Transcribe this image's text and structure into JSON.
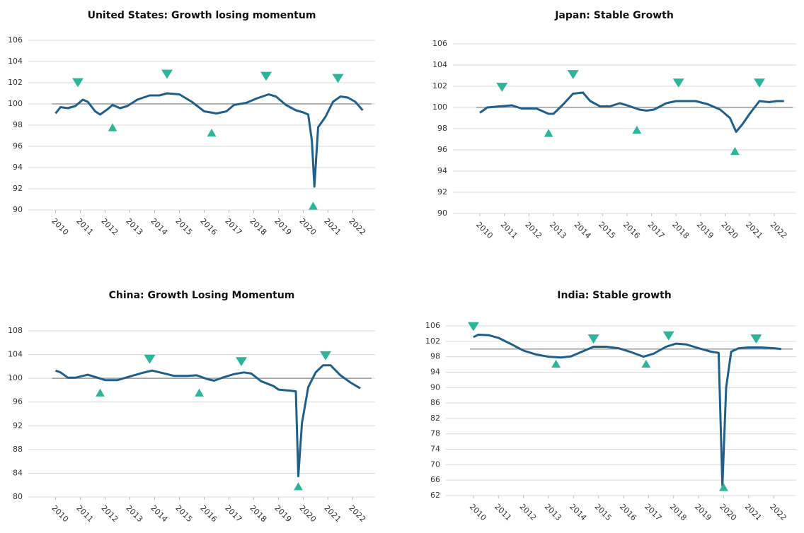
{
  "chart_data": [
    {
      "type": "line",
      "title": "United States: Growth losing momentum",
      "xlim": [
        2008.9,
        2022.9
      ],
      "xticks": [
        2010,
        2011,
        2012,
        2013,
        2014,
        2015,
        2016,
        2017,
        2018,
        2019,
        2020,
        2021,
        2022
      ],
      "ylim": [
        90,
        106
      ],
      "yticks": [
        90,
        92,
        94,
        96,
        98,
        100,
        102,
        104,
        106
      ],
      "grid": true,
      "reference": 100,
      "series": [
        {
          "color": "#1f5f8b",
          "x": [
            2010.0,
            2010.2,
            2010.5,
            2010.8,
            2011.1,
            2011.3,
            2011.6,
            2011.8,
            2012.1,
            2012.3,
            2012.6,
            2012.9,
            2013.3,
            2013.8,
            2014.2,
            2014.5,
            2015.0,
            2015.5,
            2016.0,
            2016.5,
            2016.9,
            2017.2,
            2017.7,
            2018.1,
            2018.6,
            2018.9,
            2019.3,
            2019.7,
            2020.0,
            2020.2,
            2020.35,
            2020.45,
            2020.6,
            2020.9,
            2021.2,
            2021.5,
            2021.8,
            2022.1,
            2022.4
          ],
          "values": [
            99.1,
            99.7,
            99.6,
            99.8,
            100.4,
            100.2,
            99.3,
            99.0,
            99.5,
            99.9,
            99.6,
            99.8,
            100.4,
            100.8,
            100.8,
            101.0,
            100.9,
            100.2,
            99.3,
            99.1,
            99.3,
            99.9,
            100.1,
            100.5,
            100.9,
            100.7,
            99.9,
            99.4,
            99.2,
            99.0,
            96.5,
            92.2,
            97.8,
            98.8,
            100.2,
            100.7,
            100.6,
            100.2,
            99.4
          ]
        }
      ],
      "marker_color": "#2bb59a",
      "peaks": {
        "x": [
          2010.9,
          2014.5,
          2018.5,
          2021.4
        ],
        "y": [
          102.0,
          102.8,
          102.6,
          102.4
        ]
      },
      "troughs": {
        "x": [
          2012.3,
          2016.3,
          2020.4
        ],
        "y": [
          97.8,
          97.3,
          90.4
        ]
      }
    },
    {
      "type": "line",
      "title": "Japan: Stable Growth",
      "xlim": [
        2008.9,
        2022.9
      ],
      "xticks": [
        2010,
        2011,
        2012,
        2013,
        2014,
        2015,
        2016,
        2017,
        2018,
        2019,
        2020,
        2021,
        2022
      ],
      "ylim": [
        90,
        106
      ],
      "yticks": [
        90,
        92,
        94,
        96,
        98,
        100,
        102,
        104,
        106
      ],
      "grid": true,
      "reference": 100,
      "series": [
        {
          "color": "#1f5f8b",
          "x": [
            2010.0,
            2010.3,
            2010.8,
            2011.3,
            2011.7,
            2012.3,
            2012.8,
            2013.0,
            2013.4,
            2013.8,
            2014.2,
            2014.5,
            2014.9,
            2015.3,
            2015.7,
            2016.0,
            2016.5,
            2016.8,
            2017.1,
            2017.6,
            2018.0,
            2018.5,
            2018.8,
            2019.3,
            2019.8,
            2020.2,
            2020.45,
            2020.7,
            2021.0,
            2021.4,
            2021.8,
            2022.1,
            2022.4
          ],
          "values": [
            99.5,
            100.0,
            100.1,
            100.2,
            99.9,
            99.9,
            99.4,
            99.4,
            100.3,
            101.3,
            101.4,
            100.6,
            100.1,
            100.1,
            100.4,
            100.2,
            99.8,
            99.7,
            99.8,
            100.4,
            100.6,
            100.6,
            100.6,
            100.3,
            99.8,
            99.0,
            97.7,
            98.4,
            99.4,
            100.6,
            100.5,
            100.6,
            100.6
          ]
        }
      ],
      "marker_color": "#2bb59a",
      "peaks": {
        "x": [
          2010.9,
          2013.8,
          2018.1,
          2021.4
        ],
        "y": [
          101.9,
          103.1,
          102.3,
          102.3
        ]
      },
      "troughs": {
        "x": [
          2012.8,
          2016.4,
          2020.4
        ],
        "y": [
          97.6,
          97.9,
          95.9
        ]
      }
    },
    {
      "type": "line",
      "title": "China: Growth Losing Momentum",
      "xlim": [
        2008.9,
        2022.9
      ],
      "xticks": [
        2010,
        2011,
        2012,
        2013,
        2014,
        2015,
        2016,
        2017,
        2018,
        2019,
        2020,
        2021,
        2022
      ],
      "ylim": [
        80,
        108
      ],
      "yticks": [
        80,
        84,
        88,
        92,
        96,
        100,
        104,
        108
      ],
      "grid": true,
      "reference": 100,
      "series": [
        {
          "color": "#1f5f8b",
          "x": [
            2010.0,
            2010.2,
            2010.5,
            2010.8,
            2011.3,
            2011.7,
            2012.0,
            2012.5,
            2013.0,
            2013.5,
            2013.9,
            2014.3,
            2014.8,
            2015.3,
            2015.7,
            2016.1,
            2016.4,
            2016.8,
            2017.2,
            2017.6,
            2017.9,
            2018.3,
            2018.8,
            2019.0,
            2019.5,
            2019.7,
            2019.8,
            2019.95,
            2020.2,
            2020.5,
            2020.8,
            2021.1,
            2021.5,
            2021.9,
            2022.3
          ],
          "values": [
            101.3,
            101.0,
            100.1,
            100.1,
            100.6,
            100.1,
            99.7,
            99.7,
            100.3,
            100.9,
            101.3,
            100.9,
            100.4,
            100.4,
            100.5,
            99.9,
            99.6,
            100.2,
            100.7,
            101.0,
            100.8,
            99.5,
            98.7,
            98.1,
            97.9,
            97.8,
            83.5,
            92.5,
            98.5,
            101.0,
            102.2,
            102.2,
            100.5,
            99.3,
            98.3
          ]
        }
      ],
      "marker_color": "#2bb59a",
      "peaks": {
        "x": [
          2013.8,
          2017.5,
          2020.9
        ],
        "y": [
          103.2,
          102.8,
          103.8
        ]
      },
      "troughs": {
        "x": [
          2011.8,
          2015.8,
          2019.8
        ],
        "y": [
          97.6,
          97.6,
          81.8
        ]
      }
    },
    {
      "type": "line",
      "title": "India: Stable growth",
      "xlim": [
        2008.9,
        2022.9
      ],
      "xticks": [
        2010,
        2011,
        2012,
        2013,
        2014,
        2015,
        2016,
        2017,
        2018,
        2019,
        2020,
        2021,
        2022
      ],
      "ylim": [
        62,
        106
      ],
      "yticks": [
        62,
        66,
        70,
        74,
        78,
        82,
        86,
        90,
        94,
        98,
        102,
        106
      ],
      "grid": true,
      "reference": 100,
      "series": [
        {
          "color": "#1f5f8b",
          "x": [
            2010.0,
            2010.2,
            2010.6,
            2011.0,
            2011.5,
            2012.0,
            2012.5,
            2013.0,
            2013.5,
            2013.9,
            2014.3,
            2014.8,
            2015.3,
            2015.8,
            2016.3,
            2016.8,
            2017.2,
            2017.7,
            2018.1,
            2018.5,
            2019.0,
            2019.5,
            2019.8,
            2019.95,
            2020.1,
            2020.3,
            2020.6,
            2021.0,
            2021.5,
            2022.0,
            2022.3
          ],
          "values": [
            103.1,
            103.7,
            103.6,
            102.9,
            101.3,
            99.6,
            98.6,
            98.0,
            97.8,
            98.1,
            99.2,
            100.6,
            100.6,
            100.2,
            99.2,
            98.0,
            98.8,
            100.6,
            101.4,
            101.2,
            100.2,
            99.3,
            99.0,
            64.5,
            90.0,
            99.3,
            100.2,
            100.4,
            100.4,
            100.2,
            100.0
          ]
        }
      ],
      "marker_color": "#2bb59a",
      "peaks": {
        "x": [
          2010.0,
          2014.8,
          2017.8,
          2021.3
        ],
        "y": [
          105.8,
          102.6,
          103.4,
          102.6
        ]
      },
      "troughs": {
        "x": [
          2013.3,
          2016.9,
          2020.0
        ],
        "y": [
          96.2,
          96.2,
          64.2
        ]
      }
    }
  ]
}
